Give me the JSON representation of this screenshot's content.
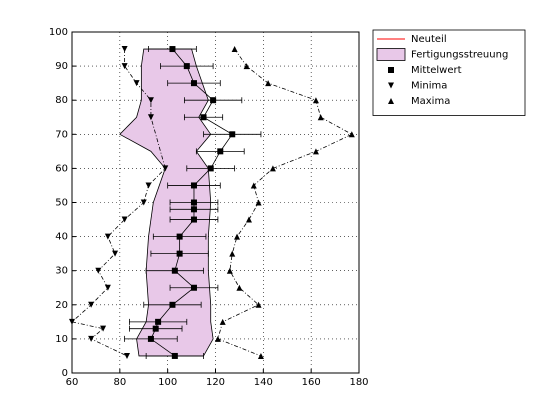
{
  "chart_data": {
    "type": "line",
    "xlim": [
      60,
      180
    ],
    "ylim": [
      0,
      100
    ],
    "xticks": [
      60,
      80,
      100,
      120,
      140,
      160,
      180
    ],
    "yticks": [
      0,
      10,
      20,
      30,
      40,
      50,
      60,
      70,
      80,
      90,
      100
    ],
    "grid": true,
    "legend": "outside-right",
    "series": [
      {
        "name": "Neuteil",
        "color": "#ff0000",
        "x": [
          100,
          100
        ],
        "y": [
          5,
          95
        ]
      },
      {
        "name": "Fertigungsstreuung",
        "color": "#e8c8e8",
        "kind": "band",
        "y": [
          5,
          10,
          15,
          20,
          30,
          40,
          50,
          60,
          65,
          70,
          75,
          80,
          90,
          95
        ],
        "lower": [
          88,
          87,
          91,
          92,
          91,
          92,
          94,
          99,
          93,
          80,
          87,
          89,
          89,
          90
        ],
        "upper": [
          115,
          119,
          118,
          118,
          117,
          117,
          118,
          117,
          112,
          118,
          113,
          117,
          112,
          110
        ]
      },
      {
        "name": "Mittelwert",
        "color": "#000000",
        "marker": "square",
        "y": [
          5,
          10,
          13,
          15,
          20,
          25,
          30,
          35,
          40,
          45,
          48,
          50,
          55,
          60,
          65,
          70,
          75,
          80,
          85,
          90,
          95
        ],
        "x": [
          103,
          93,
          95,
          96,
          102,
          111,
          103,
          105,
          105,
          111,
          111,
          111,
          111,
          118,
          122,
          127,
          115,
          119,
          111,
          108,
          102
        ],
        "error": [
          12,
          11,
          11,
          12,
          12,
          10,
          12,
          12,
          11,
          10,
          10,
          10,
          11,
          10,
          10,
          12,
          8,
          12,
          11,
          11,
          10
        ]
      },
      {
        "name": "Minima",
        "color": "#000000",
        "marker": "triangle-down",
        "y": [
          95,
          90,
          85,
          80,
          75,
          60,
          55,
          50,
          45,
          40,
          35,
          30,
          25,
          20,
          15,
          13,
          10,
          5
        ],
        "x": [
          82,
          82,
          87,
          93,
          93,
          99,
          92,
          90,
          82,
          75,
          78,
          71,
          75,
          68,
          60,
          73,
          68,
          83
        ]
      },
      {
        "name": "Maxima",
        "color": "#000000",
        "marker": "triangle-up",
        "y": [
          95,
          90,
          85,
          80,
          75,
          70,
          65,
          60,
          55,
          50,
          45,
          40,
          35,
          30,
          25,
          20,
          15,
          10,
          5
        ],
        "x": [
          128,
          133,
          142,
          162,
          164,
          177,
          162,
          144,
          136,
          138,
          134,
          129,
          127,
          126,
          130,
          138,
          123,
          121,
          139
        ]
      }
    ]
  }
}
